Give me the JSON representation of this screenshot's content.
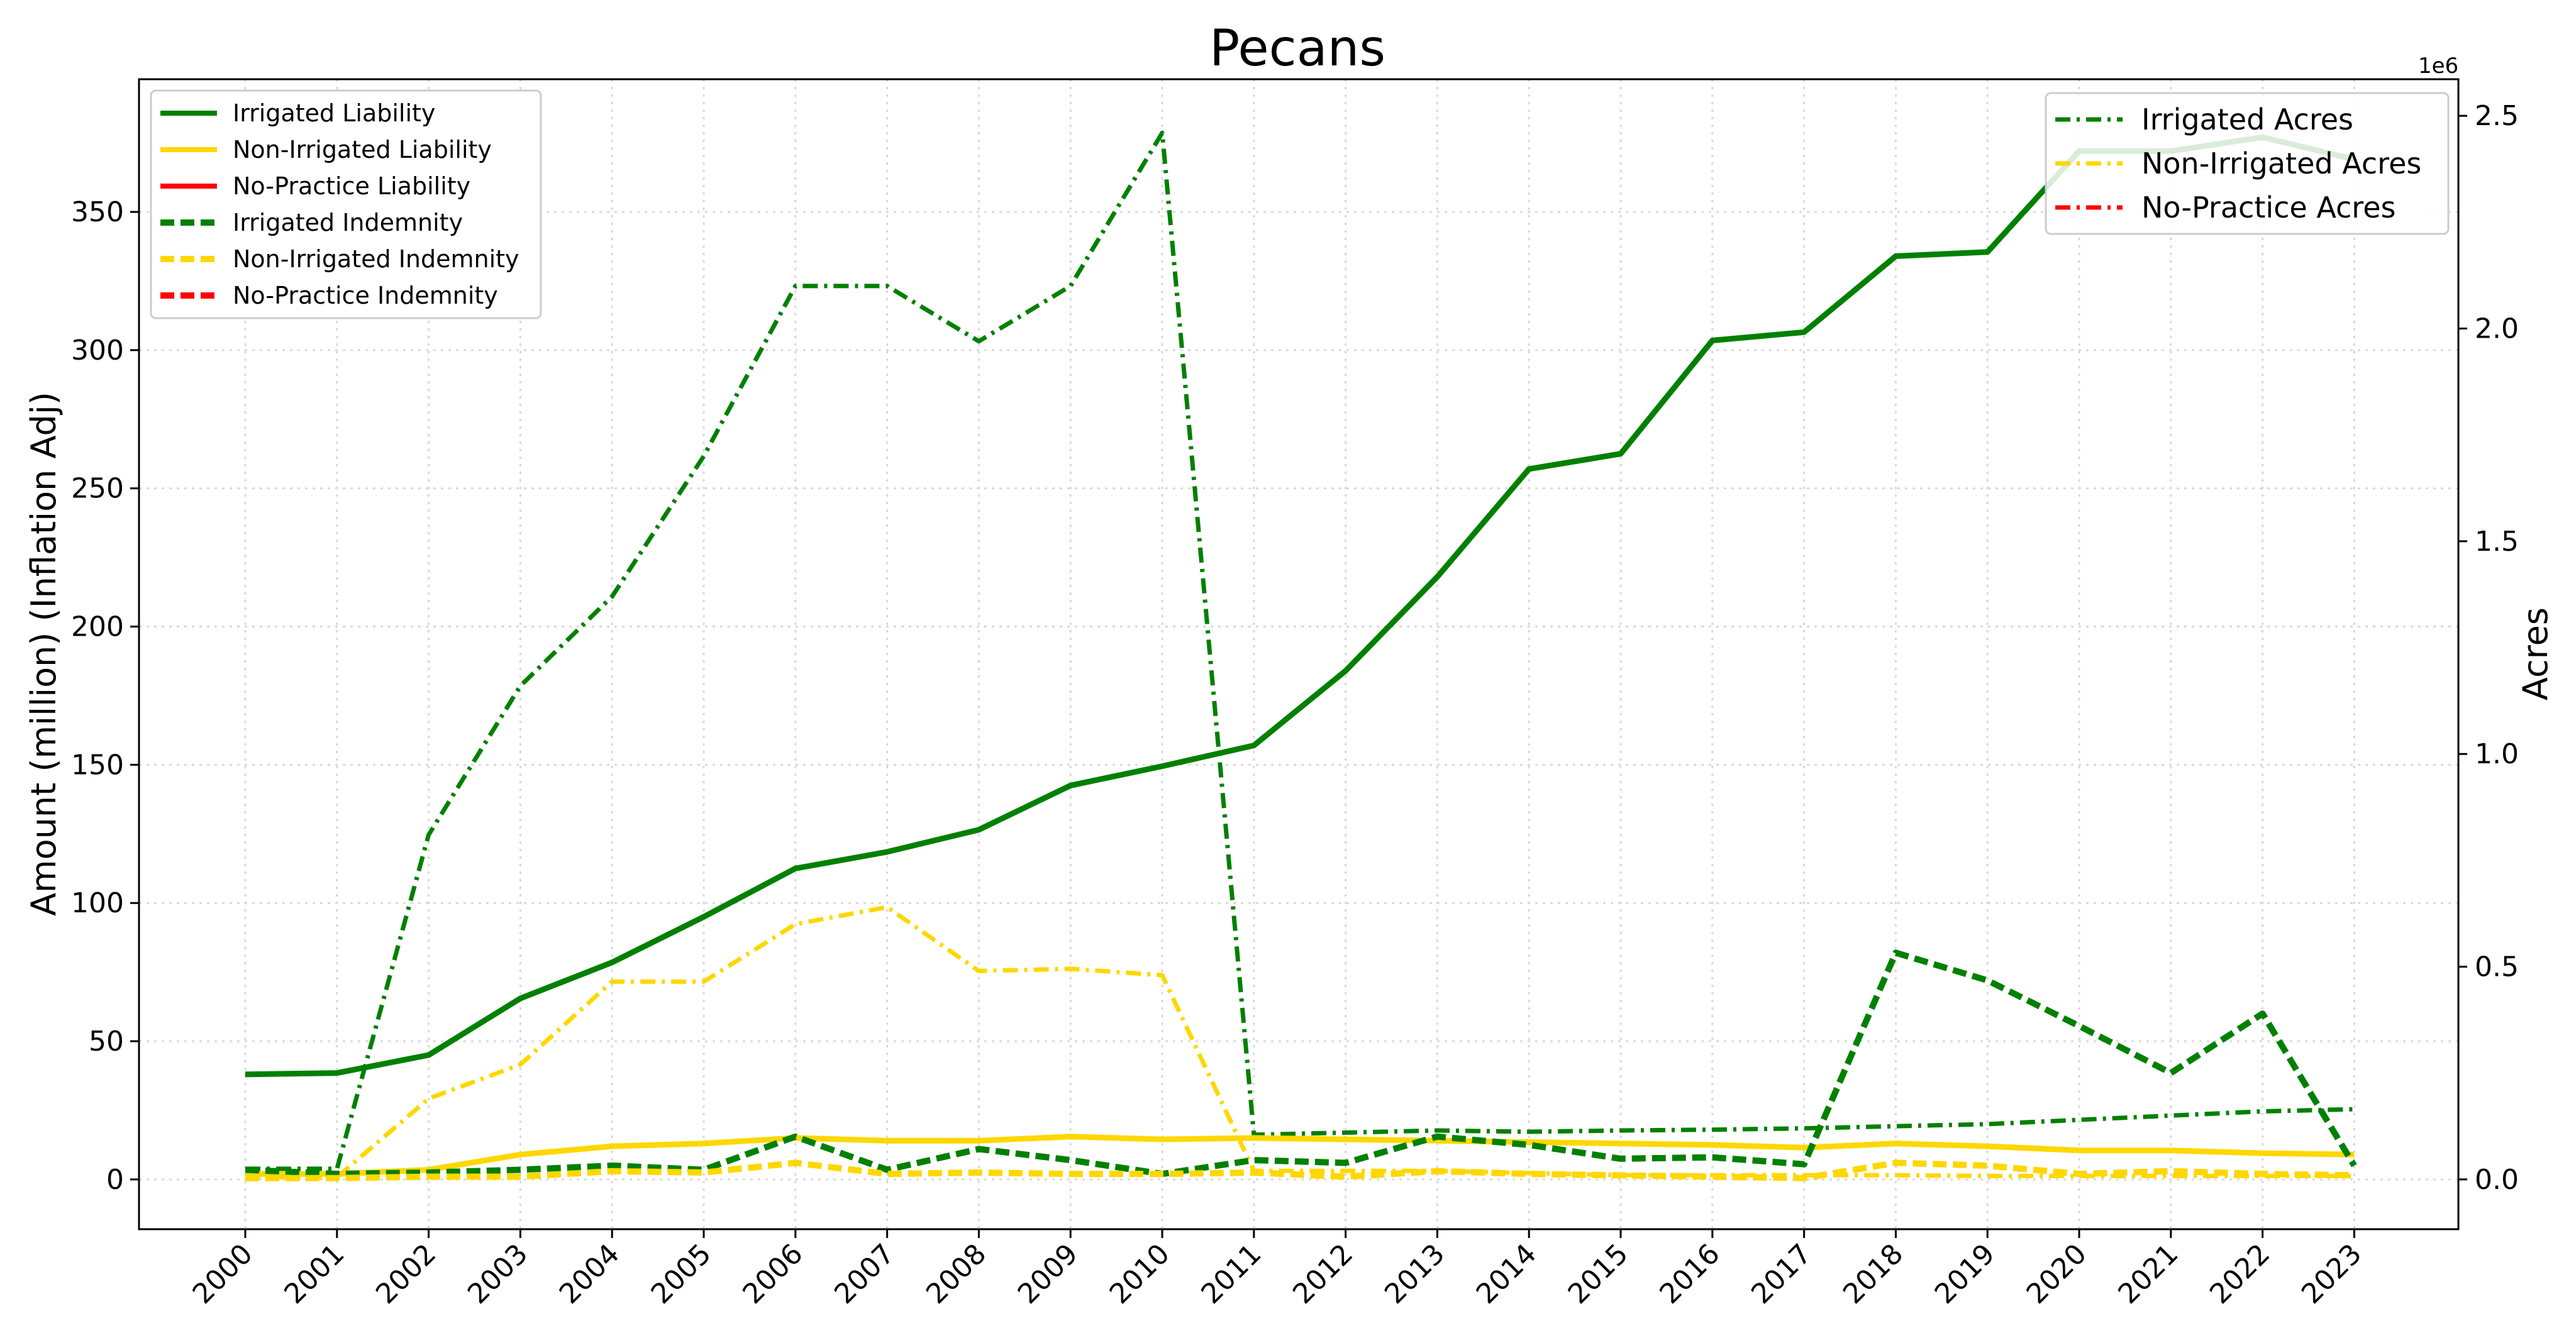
{
  "chart_data": {
    "type": "line",
    "title": "Pecans",
    "xlabel": "",
    "ylabel": "Amount (million) (Inflation Adj)",
    "y2label": "Acres",
    "y2_offset_text": "1e6",
    "x": [
      "2000",
      "2001",
      "2002",
      "2003",
      "2004",
      "2005",
      "2006",
      "2007",
      "2008",
      "2009",
      "2010",
      "2011",
      "2012",
      "2013",
      "2014",
      "2015",
      "2016",
      "2017",
      "2018",
      "2019",
      "2020",
      "2021",
      "2022",
      "2023"
    ],
    "ylim": [
      -18,
      398
    ],
    "y_ticks": [
      0,
      50,
      100,
      150,
      200,
      250,
      300,
      350
    ],
    "y2lim": [
      -0.117,
      2.586
    ],
    "y2_ticks": [
      0.0,
      0.5,
      1.0,
      1.5,
      2.0,
      2.5
    ],
    "grid": true,
    "legend_left_position": "top-left",
    "legend_right_position": "top-right",
    "series_left": [
      {
        "name": "Irrigated Liability",
        "color": "#008000",
        "style": "solid",
        "values": [
          38,
          38.5,
          45,
          65.5,
          78.5,
          95,
          112.5,
          118.5,
          126.5,
          142.5,
          149.5,
          157,
          184,
          218,
          257,
          262.5,
          303.5,
          306.5,
          334,
          335.5,
          372,
          372,
          377,
          369
        ]
      },
      {
        "name": "Non-Irrigated Liability",
        "color": "#FFD700",
        "style": "solid",
        "values": [
          2,
          2,
          3.5,
          9,
          12,
          13,
          15,
          14,
          14,
          15.5,
          14.5,
          15,
          14.5,
          14,
          13.5,
          13,
          12.5,
          11.5,
          13,
          12,
          10.5,
          10.5,
          9.5,
          9
        ]
      },
      {
        "name": "No-Practice Liability",
        "color": "#FF0000",
        "style": "solid",
        "values": []
      },
      {
        "name": "Irrigated Indemnity",
        "color": "#008000",
        "style": "dashed",
        "values": [
          3.5,
          2,
          2.5,
          3.5,
          5,
          3.5,
          15.5,
          3.5,
          11,
          7,
          2,
          7,
          6,
          15.5,
          12.5,
          7.5,
          8,
          5.5,
          82,
          72,
          55.5,
          38.5,
          60,
          5
        ]
      },
      {
        "name": "Non-Irrigated Indemnity",
        "color": "#FFD700",
        "style": "dashed",
        "values": [
          0.5,
          0.5,
          1,
          1,
          3,
          2.5,
          6,
          2,
          2.5,
          2,
          2,
          2.5,
          1,
          3,
          2,
          1.5,
          1,
          0.5,
          6,
          5,
          2,
          3,
          2,
          1.5
        ]
      },
      {
        "name": "No-Practice Indemnity",
        "color": "#FF0000",
        "style": "dashed",
        "values": []
      }
    ],
    "series_right": [
      {
        "name": "Irrigated Acres",
        "color": "#008000",
        "style": "dashdot",
        "values": [
          0.025,
          0.025,
          0.81,
          1.16,
          1.37,
          1.7,
          2.1,
          2.1,
          1.97,
          2.1,
          2.46,
          0.105,
          0.11,
          0.115,
          0.112,
          0.115,
          0.117,
          0.12,
          0.125,
          0.13,
          0.14,
          0.15,
          0.16,
          0.165
        ]
      },
      {
        "name": "Non-Irrigated Acres",
        "color": "#FFD700",
        "style": "dashdot",
        "values": [
          0.005,
          0.005,
          0.19,
          0.27,
          0.465,
          0.465,
          0.6,
          0.64,
          0.49,
          0.495,
          0.48,
          0.02,
          0.02,
          0.02,
          0.015,
          0.01,
          0.01,
          0.01,
          0.01,
          0.008,
          0.008,
          0.008,
          0.008,
          0.008
        ]
      },
      {
        "name": "No-Practice Acres",
        "color": "#FF0000",
        "style": "dashdot",
        "values": []
      }
    ]
  }
}
